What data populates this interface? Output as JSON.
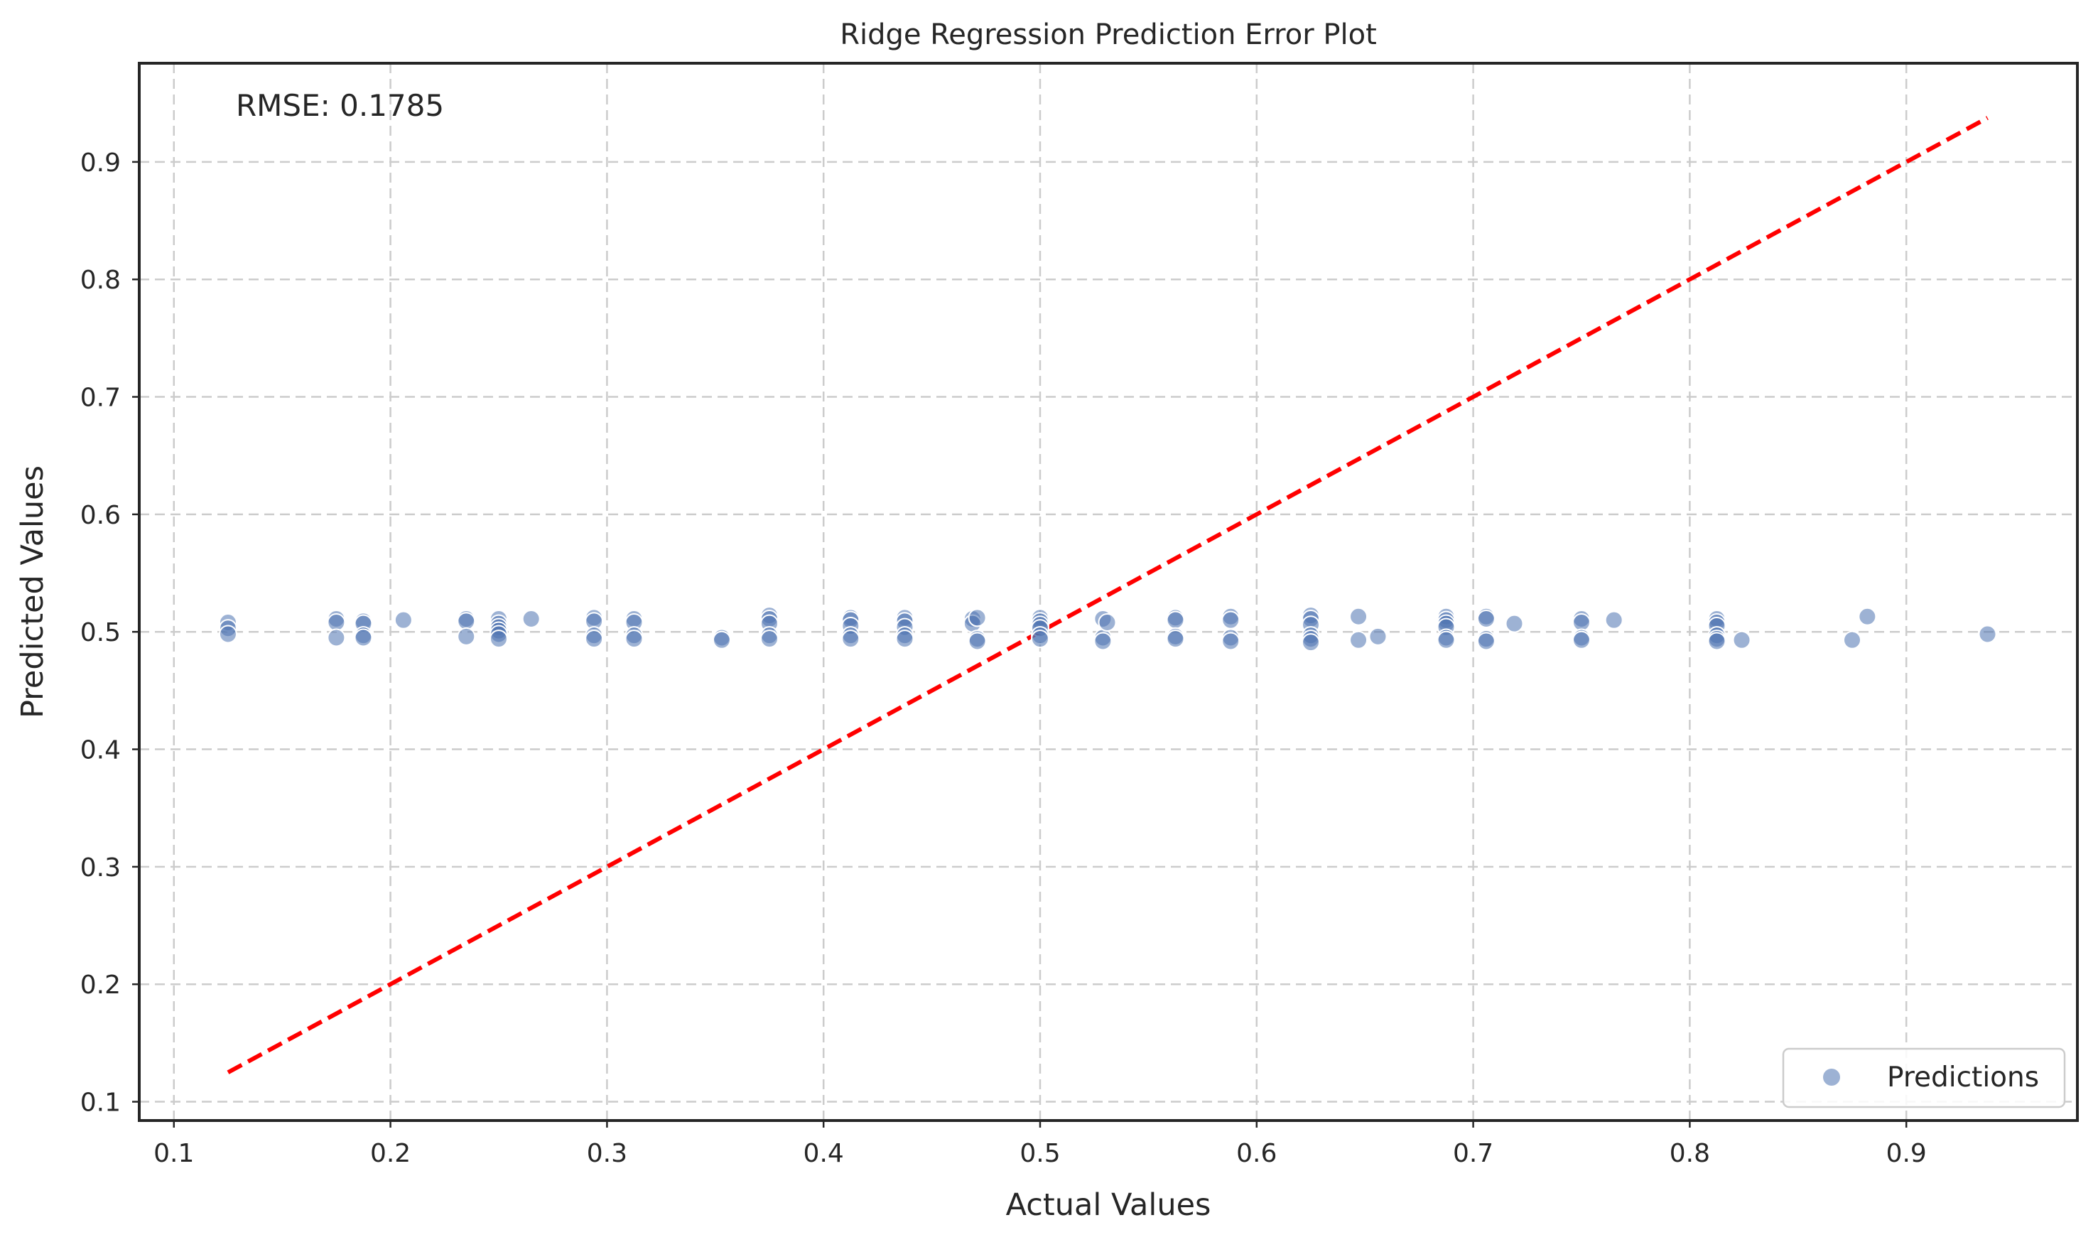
{
  "chart_data": {
    "type": "scatter",
    "title": "Ridge Regression Prediction Error Plot",
    "xlabel": "Actual Values",
    "ylabel": "Predicted Values",
    "xlim": [
      0.084,
      0.979
    ],
    "ylim": [
      0.084,
      0.984
    ],
    "xticks": [
      0.1,
      0.2,
      0.3,
      0.4,
      0.5,
      0.6,
      0.7,
      0.8,
      0.9
    ],
    "yticks": [
      0.1,
      0.2,
      0.3,
      0.4,
      0.5,
      0.6,
      0.7,
      0.8,
      0.9
    ],
    "grid": true,
    "annotation": "RMSE: 0.1785",
    "legend": {
      "position": "lower-right",
      "entries": [
        "Predictions"
      ]
    },
    "reference_line": {
      "from": [
        0.125,
        0.125
      ],
      "to": [
        0.9375,
        0.9375
      ],
      "color": "#ff0000",
      "style": "dashed"
    },
    "series": [
      {
        "name": "Predictions",
        "color": "#4c72b0",
        "points": [
          [
            0.125,
            0.508
          ],
          [
            0.125,
            0.503
          ],
          [
            0.125,
            0.498
          ],
          [
            0.175,
            0.511
          ],
          [
            0.175,
            0.508
          ],
          [
            0.175,
            0.495
          ],
          [
            0.1875,
            0.509
          ],
          [
            0.1875,
            0.507
          ],
          [
            0.1875,
            0.497
          ],
          [
            0.1875,
            0.495
          ],
          [
            0.206,
            0.51
          ],
          [
            0.235,
            0.511
          ],
          [
            0.235,
            0.509
          ],
          [
            0.235,
            0.496
          ],
          [
            0.25,
            0.511
          ],
          [
            0.25,
            0.507
          ],
          [
            0.25,
            0.504
          ],
          [
            0.25,
            0.501
          ],
          [
            0.25,
            0.498
          ],
          [
            0.25,
            0.494
          ],
          [
            0.265,
            0.511
          ],
          [
            0.294,
            0.512
          ],
          [
            0.294,
            0.509
          ],
          [
            0.294,
            0.497
          ],
          [
            0.294,
            0.494
          ],
          [
            0.3125,
            0.511
          ],
          [
            0.3125,
            0.508
          ],
          [
            0.3125,
            0.497
          ],
          [
            0.3125,
            0.494
          ],
          [
            0.353,
            0.495
          ],
          [
            0.353,
            0.493
          ],
          [
            0.375,
            0.514
          ],
          [
            0.375,
            0.511
          ],
          [
            0.375,
            0.507
          ],
          [
            0.375,
            0.497
          ],
          [
            0.375,
            0.494
          ],
          [
            0.4125,
            0.512
          ],
          [
            0.4125,
            0.51
          ],
          [
            0.4125,
            0.505
          ],
          [
            0.4125,
            0.497
          ],
          [
            0.4125,
            0.494
          ],
          [
            0.4375,
            0.512
          ],
          [
            0.4375,
            0.509
          ],
          [
            0.4375,
            0.504
          ],
          [
            0.4375,
            0.497
          ],
          [
            0.4375,
            0.494
          ],
          [
            0.4688,
            0.511
          ],
          [
            0.4688,
            0.507
          ],
          [
            0.471,
            0.512
          ],
          [
            0.471,
            0.494
          ],
          [
            0.471,
            0.492
          ],
          [
            0.5,
            0.512
          ],
          [
            0.5,
            0.509
          ],
          [
            0.5,
            0.506
          ],
          [
            0.5,
            0.503
          ],
          [
            0.5,
            0.497
          ],
          [
            0.5,
            0.494
          ],
          [
            0.529,
            0.511
          ],
          [
            0.529,
            0.495
          ],
          [
            0.529,
            0.492
          ],
          [
            0.531,
            0.508
          ],
          [
            0.5625,
            0.512
          ],
          [
            0.5625,
            0.51
          ],
          [
            0.5625,
            0.496
          ],
          [
            0.5625,
            0.494
          ],
          [
            0.588,
            0.513
          ],
          [
            0.588,
            0.51
          ],
          [
            0.588,
            0.495
          ],
          [
            0.588,
            0.492
          ],
          [
            0.625,
            0.514
          ],
          [
            0.625,
            0.511
          ],
          [
            0.625,
            0.506
          ],
          [
            0.625,
            0.497
          ],
          [
            0.625,
            0.494
          ],
          [
            0.625,
            0.491
          ],
          [
            0.647,
            0.513
          ],
          [
            0.647,
            0.493
          ],
          [
            0.656,
            0.496
          ],
          [
            0.6875,
            0.513
          ],
          [
            0.6875,
            0.51
          ],
          [
            0.6875,
            0.507
          ],
          [
            0.6875,
            0.504
          ],
          [
            0.6875,
            0.495
          ],
          [
            0.6875,
            0.493
          ],
          [
            0.706,
            0.513
          ],
          [
            0.706,
            0.511
          ],
          [
            0.706,
            0.494
          ],
          [
            0.706,
            0.492
          ],
          [
            0.719,
            0.507
          ],
          [
            0.75,
            0.511
          ],
          [
            0.75,
            0.508
          ],
          [
            0.75,
            0.495
          ],
          [
            0.75,
            0.493
          ],
          [
            0.765,
            0.51
          ],
          [
            0.8125,
            0.511
          ],
          [
            0.8125,
            0.508
          ],
          [
            0.8125,
            0.505
          ],
          [
            0.8125,
            0.497
          ],
          [
            0.8125,
            0.494
          ],
          [
            0.8125,
            0.492
          ],
          [
            0.824,
            0.493
          ],
          [
            0.875,
            0.493
          ],
          [
            0.882,
            0.513
          ],
          [
            0.9375,
            0.498
          ]
        ]
      }
    ]
  }
}
